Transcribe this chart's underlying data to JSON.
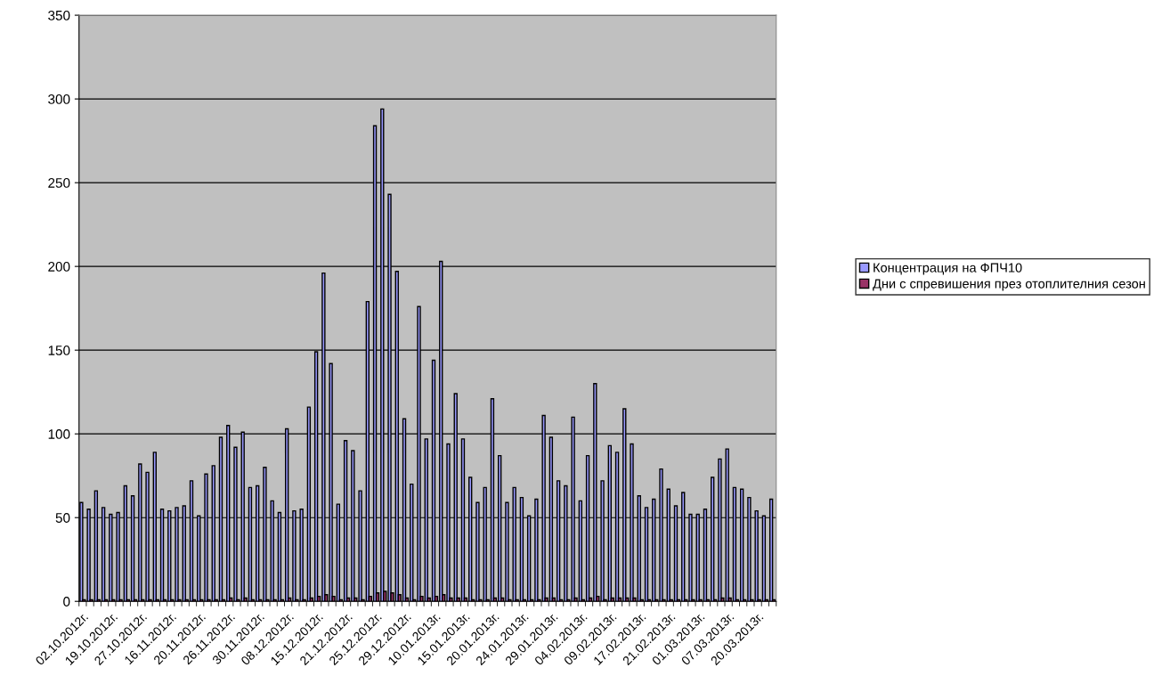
{
  "chart_data": {
    "type": "bar",
    "categories": [
      "02.10.2012г.",
      null,
      null,
      null,
      "19.10.2012г.",
      null,
      null,
      null,
      "27.10.2012г.",
      null,
      null,
      null,
      "16.11.2012г.",
      null,
      null,
      null,
      "20.11.2012г.",
      null,
      null,
      null,
      "26.11.2012г.",
      null,
      null,
      null,
      "30.11.2012г.",
      null,
      null,
      null,
      "08.12.2012г.",
      null,
      null,
      null,
      "15.12.2012г.",
      null,
      null,
      null,
      "21.12.2012г.",
      null,
      null,
      null,
      "25.12.2012г.",
      null,
      null,
      null,
      "29.12.2012г.",
      null,
      null,
      null,
      "10.01.2013г.",
      null,
      null,
      null,
      "15.01.2013г.",
      null,
      null,
      null,
      "20.01.2013г.",
      null,
      null,
      null,
      "24.01.2013г.",
      null,
      null,
      null,
      "29.01.2013г.",
      null,
      null,
      null,
      "04.02.2013г.",
      null,
      null,
      null,
      "09.02.2013г.",
      null,
      null,
      null,
      "17.02.2013г.",
      null,
      null,
      null,
      "21.02.2013г.",
      null,
      null,
      null,
      "01.03.2013г.",
      null,
      null,
      null,
      "07.03.2013г.",
      null,
      null,
      null,
      "20.03.2013г.",
      null,
      null
    ],
    "series": [
      {
        "name": "Концентрация на ФПЧ10",
        "color": "#9999ff",
        "values": [
          59,
          55,
          66,
          56,
          52,
          53,
          69,
          63,
          82,
          77,
          89,
          55,
          54,
          56,
          57,
          72,
          51,
          76,
          81,
          98,
          105,
          92,
          101,
          68,
          69,
          80,
          60,
          53,
          103,
          54,
          55,
          116,
          149,
          196,
          142,
          58,
          96,
          90,
          66,
          179,
          284,
          294,
          243,
          197,
          109,
          70,
          176,
          97,
          144,
          203,
          94,
          124,
          97,
          74,
          59,
          68,
          121,
          87,
          59,
          68,
          62,
          51,
          61,
          111,
          98,
          72,
          69,
          110,
          60,
          87,
          130,
          72,
          93,
          89,
          115,
          94,
          63,
          56,
          61,
          79,
          67,
          57,
          65,
          52,
          52,
          55,
          74,
          85,
          91,
          68,
          67,
          62,
          54,
          51,
          61
        ]
      },
      {
        "name": "Дни с спревишения през отоплителния сезон",
        "color": "#993366",
        "values": [
          1,
          1,
          1,
          1,
          1,
          1,
          1,
          1,
          1,
          1,
          1,
          1,
          1,
          1,
          1,
          1,
          1,
          1,
          1,
          1,
          2,
          1,
          2,
          1,
          1,
          1,
          1,
          1,
          2,
          1,
          1,
          2,
          3,
          4,
          3,
          1,
          2,
          2,
          1,
          3,
          5,
          6,
          5,
          4,
          2,
          1,
          3,
          2,
          3,
          4,
          2,
          2,
          2,
          1,
          1,
          1,
          2,
          2,
          1,
          1,
          1,
          1,
          1,
          2,
          2,
          1,
          1,
          2,
          1,
          2,
          3,
          1,
          2,
          2,
          2,
          2,
          1,
          1,
          1,
          1,
          1,
          1,
          1,
          1,
          1,
          1,
          1,
          2,
          2,
          1,
          1,
          1,
          1,
          1,
          1
        ]
      }
    ],
    "ylim": [
      0,
      350
    ],
    "yticks": [
      0,
      50,
      100,
      150,
      200,
      250,
      300,
      350
    ],
    "grid": "y",
    "legend": "right"
  }
}
